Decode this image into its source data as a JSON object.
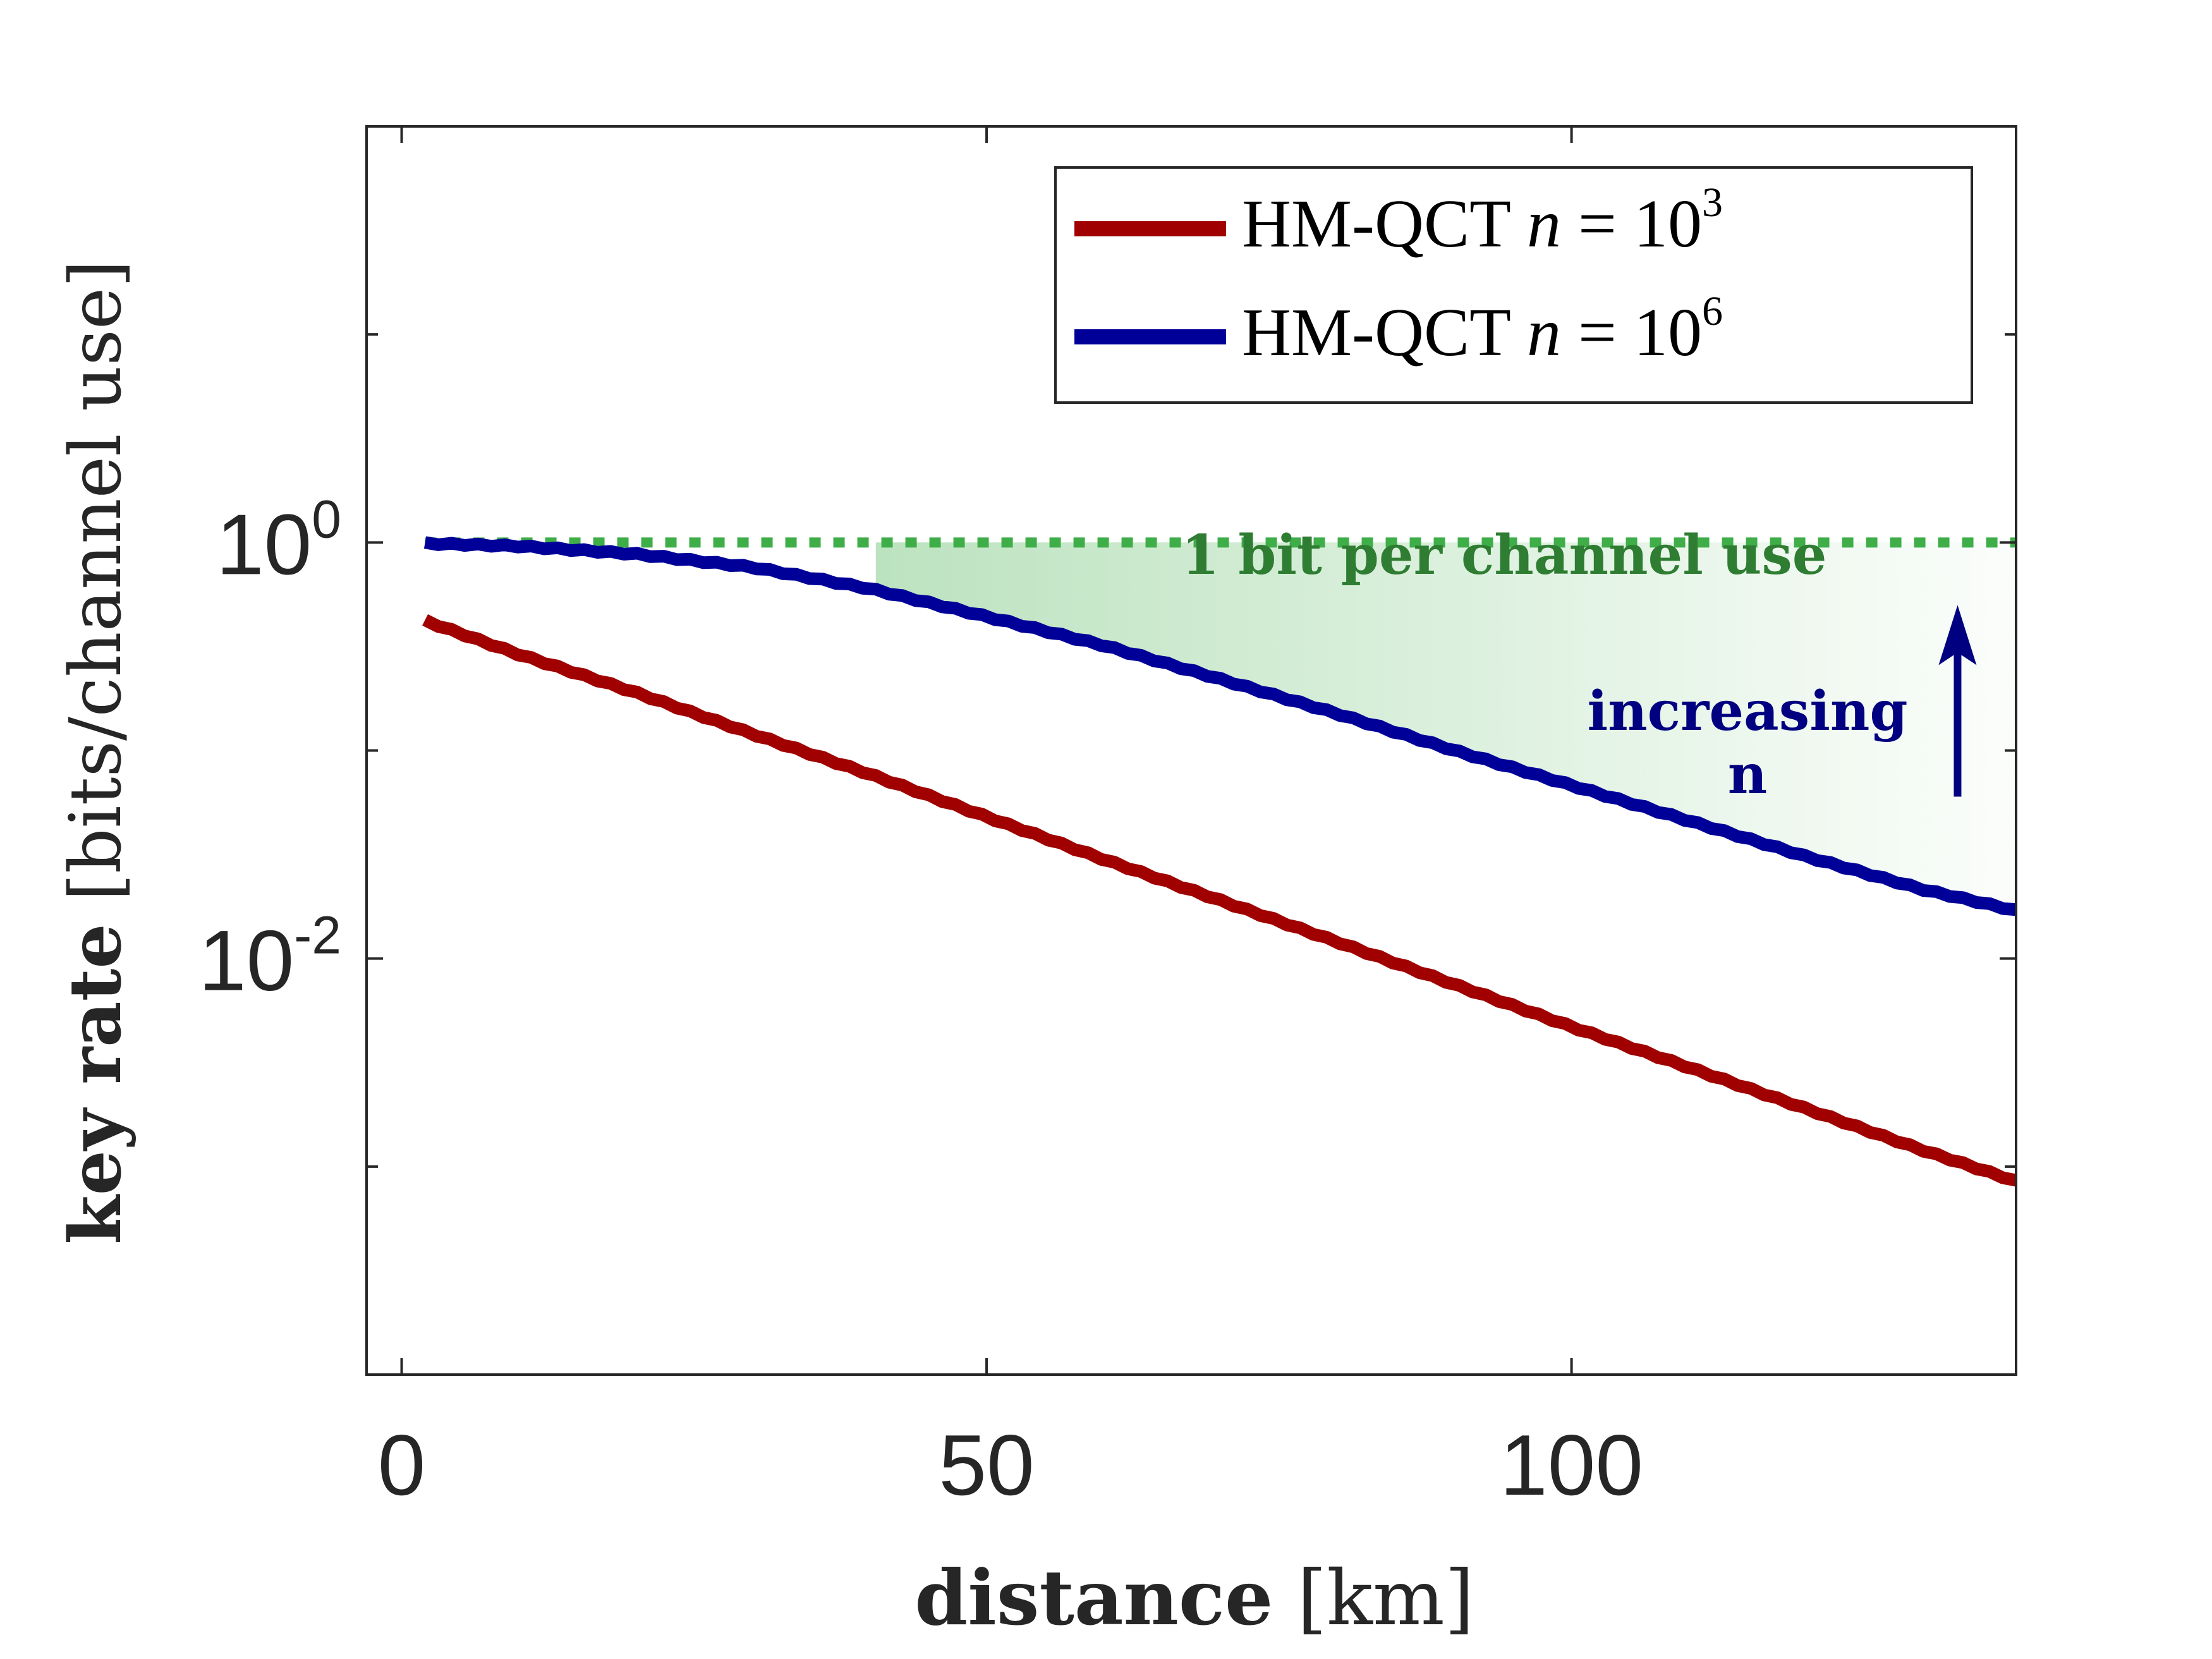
{
  "chart_data": {
    "type": "line",
    "yscale": "log",
    "xlabel": {
      "bold": "distance",
      "unit": "[km]"
    },
    "ylabel": {
      "bold": "key rate",
      "unit": "[bits/channel use]"
    },
    "xlim": [
      -3,
      138
    ],
    "ylim": [
      0.0001,
      100
    ],
    "xticks": [
      0,
      50,
      100
    ],
    "xtick_labels": [
      "0",
      "50",
      "100"
    ],
    "ytick_labels": [
      {
        "base": "10",
        "exp": "0",
        "value": 1
      },
      {
        "base": "10",
        "exp": "-2",
        "value": 0.01
      }
    ],
    "yminor_ticks": [
      0.001,
      0.1,
      10
    ],
    "series": [
      {
        "name": "HM-QCT n = 10^3",
        "legend": {
          "prefix": "HM-QCT ",
          "var": "n",
          "eq": " = ",
          "base": "10",
          "exp": "3"
        },
        "color": "#a00000",
        "x": [
          2,
          10,
          20,
          30,
          40,
          50,
          60,
          70,
          80,
          90,
          100,
          110,
          120,
          130,
          138
        ],
        "y": [
          0.42,
          0.29,
          0.19,
          0.12,
          0.077,
          0.048,
          0.03,
          0.019,
          0.012,
          0.0075,
          0.0047,
          0.003,
          0.0019,
          0.0012,
          0.00085
        ]
      },
      {
        "name": "HM-QCT n = 10^6",
        "legend": {
          "prefix": "HM-QCT ",
          "var": "n",
          "eq": " = ",
          "base": "10",
          "exp": "6"
        },
        "color": "#000099",
        "x": [
          2,
          10,
          20,
          30,
          40,
          50,
          60,
          70,
          80,
          90,
          100,
          110,
          120,
          130,
          138
        ],
        "y": [
          0.99,
          0.96,
          0.88,
          0.76,
          0.6,
          0.44,
          0.32,
          0.22,
          0.15,
          0.1,
          0.068,
          0.046,
          0.031,
          0.0215,
          0.017
        ]
      }
    ],
    "reference_line": {
      "label": "1 bit per channel use",
      "y": 1,
      "x_range": [
        2,
        138
      ],
      "color": "#3fae49"
    },
    "shaded_region": {
      "between": [
        "reference_line",
        "HM-QCT n = 10^6"
      ],
      "x_range": [
        40,
        138
      ],
      "color": "#3fae49"
    },
    "annotation": {
      "lines": [
        "increasing",
        "n"
      ],
      "color": "#000080",
      "arrow": {
        "x": 133,
        "y_from": 0.06,
        "y_to": 0.5
      }
    },
    "legend_position": "top-right",
    "grid": false
  }
}
